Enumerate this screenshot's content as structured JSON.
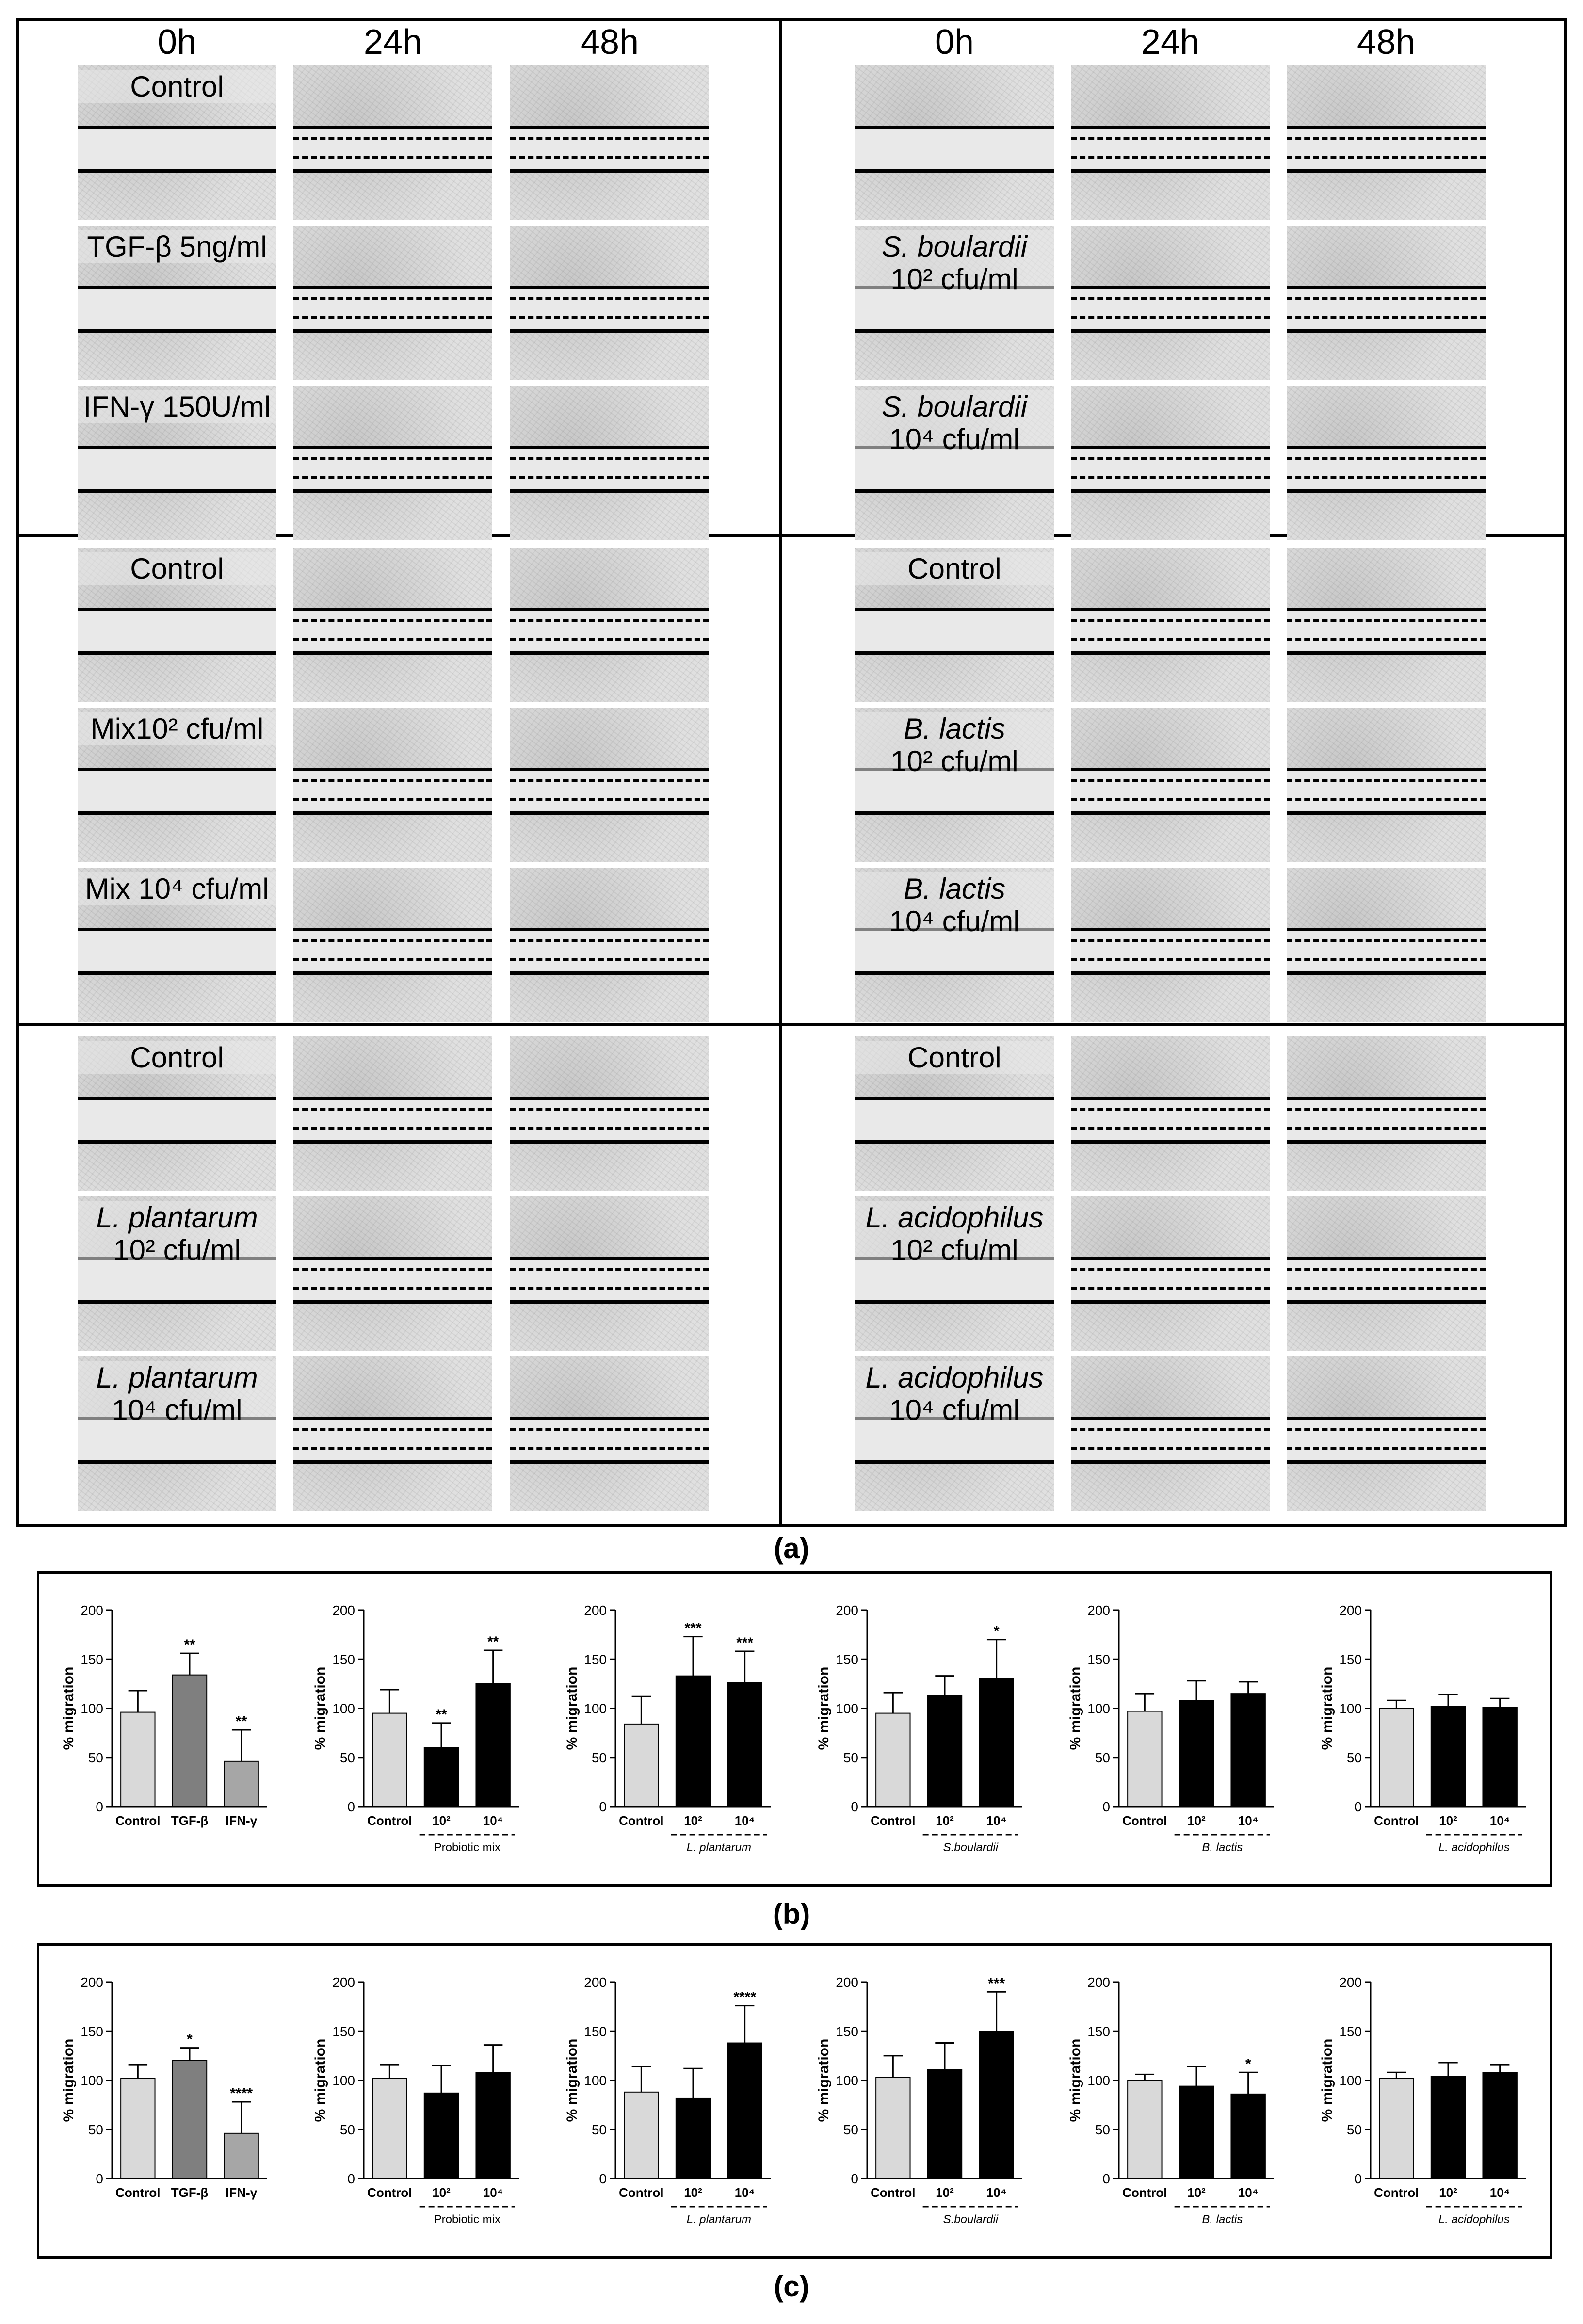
{
  "figure_a": {
    "part_label": "(a)",
    "time_headers": [
      "0h",
      "24h",
      "48h"
    ],
    "blocks": [
      {
        "rows": [
          {
            "label_lines": [
              {
                "text": "Control",
                "italic": false
              }
            ],
            "closure": [
              0,
              2,
              2
            ]
          },
          {
            "label_lines": [
              {
                "text": "TGF-β 5ng/ml",
                "italic": false
              }
            ],
            "closure": [
              0,
              2,
              2
            ]
          },
          {
            "label_lines": [
              {
                "text": "IFN-γ 150U/ml",
                "italic": false
              }
            ],
            "closure": [
              0,
              2,
              2
            ]
          }
        ]
      },
      {
        "rows": [
          {
            "label_lines": [
              {
                "text": "",
                "italic": false
              }
            ],
            "closure": [
              0,
              2,
              2
            ]
          },
          {
            "label_lines": [
              {
                "text": "S. boulardii",
                "italic": true
              },
              {
                "text": "10² cfu/ml",
                "italic": false
              }
            ],
            "closure": [
              0,
              2,
              2
            ]
          },
          {
            "label_lines": [
              {
                "text": "S. boulardii",
                "italic": true
              },
              {
                "text": "10⁴ cfu/ml",
                "italic": false
              }
            ],
            "closure": [
              0,
              2,
              2
            ]
          }
        ]
      },
      {
        "rows": [
          {
            "label_lines": [
              {
                "text": "Control",
                "italic": false
              }
            ],
            "closure": [
              0,
              2,
              2
            ]
          },
          {
            "label_lines": [
              {
                "text": "Mix10² cfu/ml",
                "italic": false
              }
            ],
            "closure": [
              0,
              2,
              2
            ]
          },
          {
            "label_lines": [
              {
                "text": "Mix 10⁴ cfu/ml",
                "italic": false
              }
            ],
            "closure": [
              0,
              2,
              2
            ]
          }
        ]
      },
      {
        "rows": [
          {
            "label_lines": [
              {
                "text": "Control",
                "italic": false
              }
            ],
            "closure": [
              0,
              2,
              2
            ]
          },
          {
            "label_lines": [
              {
                "text": "B. lactis",
                "italic": true
              },
              {
                "text": "10² cfu/ml",
                "italic": false
              }
            ],
            "closure": [
              0,
              2,
              2
            ]
          },
          {
            "label_lines": [
              {
                "text": "B. lactis",
                "italic": true
              },
              {
                "text": "10⁴ cfu/ml",
                "italic": false
              }
            ],
            "closure": [
              0,
              2,
              2
            ]
          }
        ]
      },
      {
        "rows": [
          {
            "label_lines": [
              {
                "text": "Control",
                "italic": false
              }
            ],
            "closure": [
              0,
              2,
              2
            ]
          },
          {
            "label_lines": [
              {
                "text": "L. plantarum",
                "italic": true
              },
              {
                "text": "10² cfu/ml",
                "italic": false
              }
            ],
            "closure": [
              0,
              2,
              2
            ]
          },
          {
            "label_lines": [
              {
                "text": "L. plantarum",
                "italic": true
              },
              {
                "text": "10⁴ cfu/ml",
                "italic": false
              }
            ],
            "closure": [
              0,
              2,
              2
            ]
          }
        ]
      },
      {
        "rows": [
          {
            "label_lines": [
              {
                "text": "Control",
                "italic": false
              }
            ],
            "closure": [
              0,
              2,
              2
            ]
          },
          {
            "label_lines": [
              {
                "text": "L. acidophilus",
                "italic": true
              },
              {
                "text": "10² cfu/ml",
                "italic": false
              }
            ],
            "closure": [
              0,
              2,
              2
            ]
          },
          {
            "label_lines": [
              {
                "text": "L. acidophilus",
                "italic": true
              },
              {
                "text": "10⁴ cfu/ml",
                "italic": false
              }
            ],
            "closure": [
              0,
              2,
              2
            ]
          }
        ]
      }
    ]
  },
  "figure_b_label": "(b)",
  "figure_c_label": "(c)",
  "chart_data": [
    {
      "part": "b",
      "type": "bar",
      "title": "",
      "ylabel": "% migration",
      "xlabel": "",
      "ylim": [
        0,
        200
      ],
      "yticks": [
        0,
        50,
        100,
        150,
        200
      ],
      "categories": [
        "Control",
        "TGF-β",
        "IFN-γ"
      ],
      "values": [
        96,
        134,
        46
      ],
      "errors": [
        22,
        22,
        32
      ],
      "colors": [
        "#d9d9d9",
        "#7f7f7f",
        "#a6a6a6"
      ],
      "significance": [
        "",
        "**",
        "**"
      ],
      "group_label": ""
    },
    {
      "part": "b",
      "type": "bar",
      "title": "",
      "ylabel": "% migration",
      "xlabel": "",
      "ylim": [
        0,
        200
      ],
      "yticks": [
        0,
        50,
        100,
        150,
        200
      ],
      "categories": [
        "Control",
        "10²",
        "10⁴"
      ],
      "values": [
        95,
        60,
        125
      ],
      "errors": [
        24,
        25,
        34
      ],
      "colors": [
        "#d9d9d9",
        "#000000",
        "#000000"
      ],
      "significance": [
        "",
        "**",
        "**"
      ],
      "group_label": "Probiotic mix",
      "group_italic": false
    },
    {
      "part": "b",
      "type": "bar",
      "title": "",
      "ylabel": "% migration",
      "xlabel": "",
      "ylim": [
        0,
        200
      ],
      "yticks": [
        0,
        50,
        100,
        150,
        200
      ],
      "categories": [
        "Control",
        "10²",
        "10⁴"
      ],
      "values": [
        84,
        133,
        126
      ],
      "errors": [
        28,
        40,
        32
      ],
      "colors": [
        "#d9d9d9",
        "#000000",
        "#000000"
      ],
      "significance": [
        "",
        "***",
        "***"
      ],
      "group_label": "L. plantarum",
      "group_italic": true
    },
    {
      "part": "b",
      "type": "bar",
      "title": "",
      "ylabel": "% migration",
      "xlabel": "",
      "ylim": [
        0,
        200
      ],
      "yticks": [
        0,
        50,
        100,
        150,
        200
      ],
      "categories": [
        "Control",
        "10²",
        "10⁴"
      ],
      "values": [
        95,
        113,
        130
      ],
      "errors": [
        21,
        20,
        40
      ],
      "colors": [
        "#d9d9d9",
        "#000000",
        "#000000"
      ],
      "significance": [
        "",
        "",
        "*"
      ],
      "group_label": "S.boulardii",
      "group_italic": true
    },
    {
      "part": "b",
      "type": "bar",
      "title": "",
      "ylabel": "% migration",
      "xlabel": "",
      "ylim": [
        0,
        200
      ],
      "yticks": [
        0,
        50,
        100,
        150,
        200
      ],
      "categories": [
        "Control",
        "10²",
        "10⁴"
      ],
      "values": [
        97,
        108,
        115
      ],
      "errors": [
        18,
        20,
        12
      ],
      "colors": [
        "#d9d9d9",
        "#000000",
        "#000000"
      ],
      "significance": [
        "",
        "",
        ""
      ],
      "group_label": "B. lactis",
      "group_italic": true
    },
    {
      "part": "b",
      "type": "bar",
      "title": "",
      "ylabel": "% migration",
      "xlabel": "",
      "ylim": [
        0,
        200
      ],
      "yticks": [
        0,
        50,
        100,
        150,
        200
      ],
      "categories": [
        "Control",
        "10²",
        "10⁴"
      ],
      "values": [
        100,
        102,
        101
      ],
      "errors": [
        8,
        12,
        9
      ],
      "colors": [
        "#d9d9d9",
        "#000000",
        "#000000"
      ],
      "significance": [
        "",
        "",
        ""
      ],
      "group_label": "L. acidophilus",
      "group_italic": true
    },
    {
      "part": "c",
      "type": "bar",
      "title": "",
      "ylabel": "% migration",
      "xlabel": "",
      "ylim": [
        0,
        200
      ],
      "yticks": [
        0,
        50,
        100,
        150,
        200
      ],
      "categories": [
        "Control",
        "TGF-β",
        "IFN-γ"
      ],
      "values": [
        102,
        120,
        46
      ],
      "errors": [
        14,
        13,
        32
      ],
      "colors": [
        "#d9d9d9",
        "#7f7f7f",
        "#a6a6a6"
      ],
      "significance": [
        "",
        "*",
        "****"
      ],
      "group_label": ""
    },
    {
      "part": "c",
      "type": "bar",
      "title": "",
      "ylabel": "% migration",
      "xlabel": "",
      "ylim": [
        0,
        200
      ],
      "yticks": [
        0,
        50,
        100,
        150,
        200
      ],
      "categories": [
        "Control",
        "10²",
        "10⁴"
      ],
      "values": [
        102,
        87,
        108
      ],
      "errors": [
        14,
        28,
        28
      ],
      "colors": [
        "#d9d9d9",
        "#000000",
        "#000000"
      ],
      "significance": [
        "",
        "",
        ""
      ],
      "group_label": "Probiotic mix",
      "group_italic": false
    },
    {
      "part": "c",
      "type": "bar",
      "title": "",
      "ylabel": "% migration",
      "xlabel": "",
      "ylim": [
        0,
        200
      ],
      "yticks": [
        0,
        50,
        100,
        150,
        200
      ],
      "categories": [
        "Control",
        "10²",
        "10⁴"
      ],
      "values": [
        88,
        82,
        138
      ],
      "errors": [
        26,
        30,
        38
      ],
      "colors": [
        "#d9d9d9",
        "#000000",
        "#000000"
      ],
      "significance": [
        "",
        "",
        "****"
      ],
      "group_label": "L. plantarum",
      "group_italic": true
    },
    {
      "part": "c",
      "type": "bar",
      "title": "",
      "ylabel": "% migration",
      "xlabel": "",
      "ylim": [
        0,
        200
      ],
      "yticks": [
        0,
        50,
        100,
        150,
        200
      ],
      "categories": [
        "Control",
        "10²",
        "10⁴"
      ],
      "values": [
        103,
        111,
        150
      ],
      "errors": [
        22,
        27,
        40
      ],
      "colors": [
        "#d9d9d9",
        "#000000",
        "#000000"
      ],
      "significance": [
        "",
        "",
        "***"
      ],
      "group_label": "S.boulardii",
      "group_italic": true
    },
    {
      "part": "c",
      "type": "bar",
      "title": "",
      "ylabel": "% migration",
      "xlabel": "",
      "ylim": [
        0,
        200
      ],
      "yticks": [
        0,
        50,
        100,
        150,
        200
      ],
      "categories": [
        "Control",
        "10²",
        "10⁴"
      ],
      "values": [
        100,
        94,
        86
      ],
      "errors": [
        6,
        20,
        22
      ],
      "colors": [
        "#d9d9d9",
        "#000000",
        "#000000"
      ],
      "significance": [
        "",
        "",
        "*"
      ],
      "group_label": "B. lactis",
      "group_italic": true
    },
    {
      "part": "c",
      "type": "bar",
      "title": "",
      "ylabel": "% migration",
      "xlabel": "",
      "ylim": [
        0,
        200
      ],
      "yticks": [
        0,
        50,
        100,
        150,
        200
      ],
      "categories": [
        "Control",
        "10²",
        "10⁴"
      ],
      "values": [
        102,
        104,
        108
      ],
      "errors": [
        6,
        14,
        8
      ],
      "colors": [
        "#d9d9d9",
        "#000000",
        "#000000"
      ],
      "significance": [
        "",
        "",
        ""
      ],
      "group_label": "L. acidophilus",
      "group_italic": true
    }
  ]
}
